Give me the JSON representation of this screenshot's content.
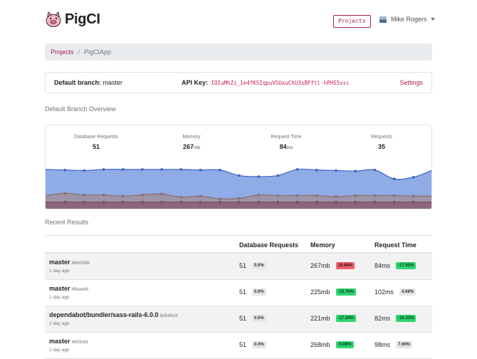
{
  "nav": {
    "brand": "PigCI",
    "projects_button": "Projects",
    "user_name": "Mike Rogers"
  },
  "breadcrumb": {
    "projects": "Projects",
    "separator": "/",
    "current": "PigCIApp"
  },
  "info": {
    "branch_label": "Default branch:",
    "branch_value": "master",
    "api_label": "API Key:",
    "api_key": "IOIuMhZi_1e4fKSIqpuV5UxuChU3sBFftl-hPHS5vsc",
    "settings": "Settings"
  },
  "overview": {
    "title": "Default Branch Overview",
    "stats": [
      {
        "label": "Database Requests",
        "value": "51",
        "unit": ""
      },
      {
        "label": "Memory",
        "value": "267",
        "unit": "mb"
      },
      {
        "label": "Request Time",
        "value": "84",
        "unit": "ms"
      },
      {
        "label": "Requests",
        "value": "35",
        "unit": ""
      }
    ]
  },
  "chart_data": {
    "type": "area",
    "series": [
      {
        "values": [
          0.72,
          0.71,
          0.7,
          0.72,
          0.72,
          0.72,
          0.72,
          0.72,
          0.71,
          0.71,
          0.61,
          0.59,
          0.61,
          0.72,
          0.71,
          0.7,
          0.69,
          0.71,
          0.55,
          0.58,
          0.71
        ],
        "color": "#7b9ee3",
        "line": "#3a64c4"
      },
      {
        "values": [
          0.25,
          0.29,
          0.26,
          0.26,
          0.24,
          0.26,
          0.28,
          0.22,
          0.24,
          0.19,
          0.2,
          0.26,
          0.25,
          0.25,
          0.25,
          0.23,
          0.25,
          0.25,
          0.25,
          0.24,
          0.24
        ],
        "color": "#a08f99",
        "line": "#8a6d6d"
      },
      {
        "values": [
          0.13,
          0.13,
          0.13,
          0.13,
          0.13,
          0.13,
          0.13,
          0.13,
          0.13,
          0.13,
          0.13,
          0.13,
          0.13,
          0.13,
          0.13,
          0.13,
          0.13,
          0.13,
          0.13,
          0.13,
          0.13
        ],
        "color": "#8a5a72",
        "line": "#7a4560"
      }
    ]
  },
  "results": {
    "title": "Recent Results",
    "headers": [
      "Database Requests",
      "Memory",
      "Request Time"
    ],
    "rows": [
      {
        "branch": "master",
        "commit": "48b0386",
        "when": "1 day ago",
        "db": "51",
        "db_change": "0.0%",
        "db_status": "neutral",
        "memory": "267mb",
        "memory_change": "18.68%",
        "memory_status": "bad",
        "time": "84ms",
        "time_change": "-17.65%",
        "time_status": "good"
      },
      {
        "branch": "master",
        "commit": "4fbae66",
        "when": "1 day ago",
        "db": "51",
        "db_change": "0.0%",
        "db_status": "neutral",
        "memory": "225mb",
        "memory_change": "-15.76%",
        "memory_status": "good",
        "time": "102ms",
        "time_change": "4.08%",
        "time_status": "neutral"
      },
      {
        "branch": "dependabot/bundler/sass-rails-6.0.0",
        "commit": "9d595c9",
        "when": "1 day ago",
        "db": "51",
        "db_change": "0.0%",
        "db_status": "neutral",
        "memory": "221mb",
        "memory_change": "-17.24%",
        "memory_status": "good",
        "time": "82ms",
        "time_change": "-16.33%",
        "time_status": "good"
      },
      {
        "branch": "master",
        "commit": "465fcb9",
        "when": "1 day ago",
        "db": "51",
        "db_change": "0.0%",
        "db_status": "neutral",
        "memory": "268mb",
        "memory_change": "-0.08%",
        "memory_status": "good",
        "time": "98ms",
        "time_change": "7.69%",
        "time_status": "neutral"
      }
    ]
  }
}
